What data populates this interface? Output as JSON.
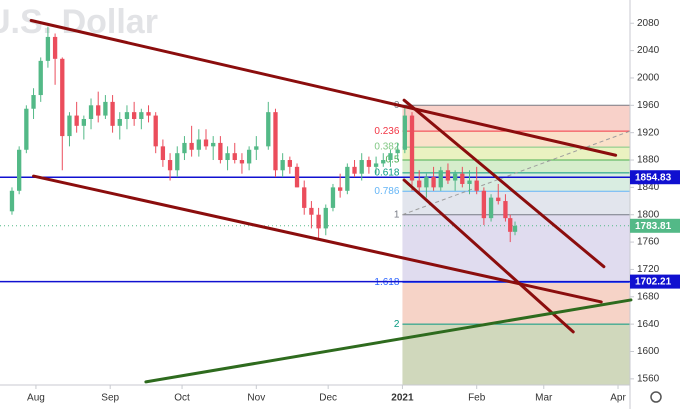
{
  "chart_data": {
    "type": "candlestick",
    "title": "U.S. Dollar",
    "xlim": [
      -15,
      248
    ],
    "ylim": [
      1551,
      2114
    ],
    "yticks": [
      2080,
      2040,
      2000,
      1960,
      1920,
      1880,
      1840,
      1800,
      1760,
      1720,
      1680,
      1640,
      1600,
      1560
    ],
    "xticks": [
      {
        "value": 0,
        "label": "Aug"
      },
      {
        "value": 31,
        "label": "Sep"
      },
      {
        "value": 61,
        "label": "Oct"
      },
      {
        "value": 92,
        "label": "Nov"
      },
      {
        "value": 122,
        "label": "Dec"
      },
      {
        "value": 153,
        "label": "2021"
      },
      {
        "value": 184,
        "label": "Feb"
      },
      {
        "value": 212,
        "label": "Mar"
      },
      {
        "value": 243,
        "label": "Apr"
      }
    ],
    "up_color": "#53b987",
    "down_color": "#eb4d5c",
    "x": [
      -10,
      -7,
      -4,
      -1,
      2,
      5,
      8,
      11,
      14,
      17,
      20,
      23,
      26,
      29,
      32,
      35,
      38,
      41,
      44,
      47,
      50,
      53,
      56,
      59,
      62,
      65,
      68,
      71,
      74,
      77,
      80,
      83,
      86,
      89,
      92,
      97,
      100,
      103,
      106,
      109,
      112,
      115,
      118,
      121,
      124,
      127,
      130,
      133,
      136,
      139,
      142,
      145,
      148,
      151,
      154,
      157,
      160,
      163,
      166,
      169,
      172,
      175,
      178,
      181,
      184,
      187,
      190,
      193,
      196,
      198,
      200
    ],
    "open": [
      1805,
      1835,
      1895,
      1955,
      1975,
      2025,
      2060,
      2028,
      1915,
      1945,
      1930,
      1940,
      1960,
      1945,
      1965,
      1930,
      1940,
      1950,
      1940,
      1950,
      1945,
      1900,
      1880,
      1865,
      1890,
      1905,
      1895,
      1910,
      1900,
      1905,
      1880,
      1890,
      1880,
      1875,
      1895,
      1900,
      1950,
      1865,
      1880,
      1870,
      1840,
      1810,
      1800,
      1780,
      1810,
      1840,
      1835,
      1870,
      1860,
      1880,
      1870,
      1875,
      1880,
      1890,
      1895,
      1945,
      1850,
      1840,
      1855,
      1840,
      1865,
      1850,
      1860,
      1845,
      1850,
      1835,
      1795,
      1825,
      1820,
      1795,
      1775
    ],
    "high": [
      1840,
      1900,
      1960,
      1985,
      2030,
      2075,
      2065,
      2030,
      1950,
      1965,
      1945,
      1970,
      1980,
      1975,
      1975,
      1950,
      1960,
      1965,
      1955,
      1960,
      1950,
      1910,
      1890,
      1900,
      1915,
      1930,
      1925,
      1925,
      1915,
      1915,
      1900,
      1905,
      1890,
      1900,
      1915,
      1965,
      1955,
      1890,
      1885,
      1875,
      1850,
      1820,
      1810,
      1815,
      1845,
      1860,
      1875,
      1880,
      1890,
      1885,
      1885,
      1890,
      1895,
      1905,
      1960,
      1950,
      1865,
      1860,
      1870,
      1870,
      1875,
      1865,
      1870,
      1865,
      1870,
      1840,
      1830,
      1845,
      1830,
      1800,
      1790
    ],
    "low": [
      1800,
      1830,
      1890,
      1940,
      1965,
      2015,
      1990,
      1865,
      1900,
      1920,
      1910,
      1925,
      1935,
      1940,
      1920,
      1910,
      1925,
      1930,
      1925,
      1935,
      1890,
      1870,
      1850,
      1855,
      1880,
      1885,
      1885,
      1895,
      1880,
      1875,
      1865,
      1875,
      1860,
      1865,
      1880,
      1895,
      1855,
      1855,
      1860,
      1840,
      1800,
      1780,
      1765,
      1770,
      1805,
      1825,
      1830,
      1855,
      1850,
      1860,
      1860,
      1870,
      1870,
      1880,
      1890,
      1835,
      1830,
      1825,
      1835,
      1835,
      1845,
      1835,
      1840,
      1830,
      1830,
      1785,
      1790,
      1815,
      1790,
      1760,
      1770
    ],
    "close": [
      1835,
      1895,
      1955,
      1975,
      2025,
      2060,
      2028,
      1915,
      1945,
      1930,
      1940,
      1960,
      1945,
      1965,
      1930,
      1940,
      1950,
      1940,
      1950,
      1945,
      1900,
      1880,
      1865,
      1890,
      1905,
      1895,
      1910,
      1900,
      1905,
      1880,
      1890,
      1880,
      1875,
      1895,
      1900,
      1950,
      1865,
      1880,
      1870,
      1840,
      1810,
      1800,
      1780,
      1810,
      1840,
      1835,
      1870,
      1860,
      1880,
      1870,
      1875,
      1880,
      1890,
      1895,
      1945,
      1850,
      1840,
      1855,
      1840,
      1865,
      1850,
      1860,
      1845,
      1850,
      1835,
      1795,
      1825,
      1820,
      1795,
      1775,
      1783.81
    ],
    "fib": {
      "start_x": 153,
      "price_start": 1960,
      "price_end": 1800,
      "levels": [
        0,
        0.236,
        0.382,
        0.5,
        0.618,
        0.786,
        1,
        1.618,
        2
      ],
      "colors": [
        "#787b86",
        "#f23645",
        "#81c784",
        "#4caf50",
        "#089981",
        "#64b5f6",
        "#787b86",
        "#2962ff",
        "#089981"
      ],
      "band_colors": [
        "#f7c9bf",
        "#f9dcc0",
        "#e6f0b6",
        "#cfeac3",
        "#d2eadc",
        "#dde1ea",
        "#dad6ec",
        "#f4cbbd",
        "#c8d1b0"
      ]
    },
    "trend_lines": [
      {
        "x": [
          -2,
          242
        ],
        "y": [
          2084,
          1887
        ],
        "color": "#8b0d0d"
      },
      {
        "x": [
          -1,
          236
        ],
        "y": [
          1856.5,
          1672.5
        ],
        "color": "#8b0d0d"
      },
      {
        "x": [
          153.7,
          237.1
        ],
        "y": [
          1967.5,
          1724
        ],
        "color": "#8b0d0d"
      },
      {
        "x": [
          153.7,
          224.3
        ],
        "y": [
          1850.7,
          1628.7
        ],
        "color": "#8b0d0d"
      },
      {
        "x": [
          45.9,
          248.4
        ],
        "y": [
          1555.6,
          1675.4
        ],
        "color": "#2e6b1e"
      }
    ],
    "price_lines": [
      {
        "value": 1854.83,
        "color": "#1010d0"
      },
      {
        "value": 1702.21,
        "color": "#1010d0"
      }
    ],
    "last_price": {
      "value": 1783.81,
      "color": "#53b987"
    }
  }
}
